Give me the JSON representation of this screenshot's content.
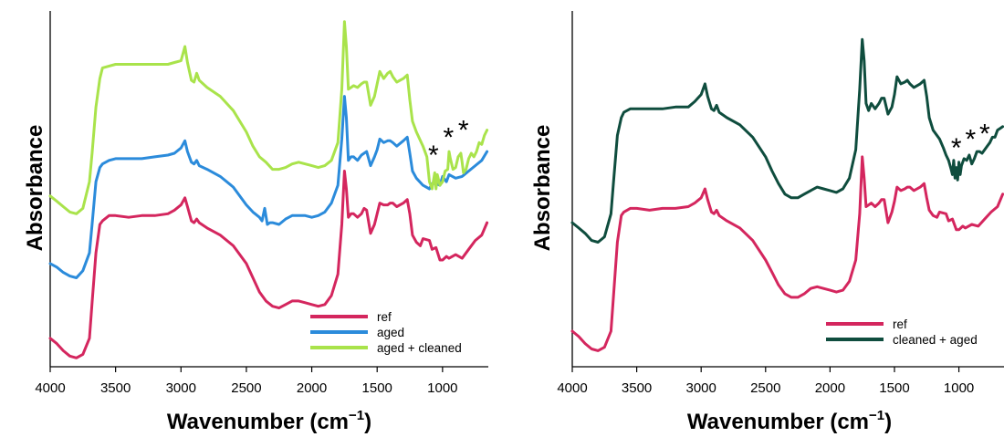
{
  "chart_data": [
    {
      "type": "line",
      "xlabel": "Wavenumber (cm",
      "xlabel_sup": "−1",
      "xlabel_close": ")",
      "ylabel": "Absorbance",
      "xlim": [
        4000,
        650
      ],
      "ylim": [
        0,
        10
      ],
      "xticks": [
        4000,
        3500,
        3000,
        2500,
        2000,
        1500,
        1000
      ],
      "annotations": [
        "*",
        "*",
        "*"
      ],
      "annotation_positions": [
        [
          1070,
          6.0
        ],
        [
          955,
          6.5
        ],
        [
          840,
          6.7
        ]
      ],
      "legend_position": "bottom-right",
      "series": [
        {
          "name": "ref",
          "color": "#d4265e",
          "x": [
            4000,
            3950,
            3900,
            3850,
            3800,
            3750,
            3700,
            3680,
            3650,
            3620,
            3600,
            3550,
            3500,
            3400,
            3300,
            3200,
            3100,
            3050,
            3000,
            2970,
            2950,
            2920,
            2900,
            2880,
            2860,
            2800,
            2700,
            2600,
            2500,
            2450,
            2400,
            2350,
            2300,
            2250,
            2200,
            2150,
            2100,
            2050,
            2000,
            1950,
            1900,
            1850,
            1800,
            1770,
            1750,
            1735,
            1720,
            1700,
            1680,
            1650,
            1620,
            1600,
            1580,
            1550,
            1520,
            1500,
            1480,
            1450,
            1420,
            1400,
            1380,
            1350,
            1300,
            1270,
            1250,
            1230,
            1200,
            1170,
            1150,
            1100,
            1080,
            1050,
            1020,
            1000,
            970,
            950,
            900,
            850,
            800,
            750,
            700,
            660
          ],
          "y": [
            0.8,
            0.65,
            0.45,
            0.3,
            0.25,
            0.35,
            0.8,
            1.8,
            3.2,
            4.0,
            4.1,
            4.25,
            4.25,
            4.2,
            4.25,
            4.25,
            4.3,
            4.4,
            4.55,
            4.75,
            4.5,
            4.1,
            4.05,
            4.15,
            4.05,
            3.9,
            3.7,
            3.4,
            2.9,
            2.5,
            2.1,
            1.85,
            1.7,
            1.65,
            1.75,
            1.85,
            1.85,
            1.8,
            1.75,
            1.7,
            1.75,
            2.0,
            2.6,
            4.0,
            5.5,
            5.0,
            4.2,
            4.3,
            4.3,
            4.2,
            4.3,
            4.45,
            4.4,
            3.75,
            4.0,
            4.3,
            4.6,
            4.55,
            4.55,
            4.6,
            4.6,
            4.5,
            4.6,
            4.7,
            4.3,
            3.7,
            3.5,
            3.4,
            3.6,
            3.55,
            3.3,
            3.35,
            3.0,
            3.0,
            3.1,
            3.05,
            3.15,
            3.05,
            3.3,
            3.55,
            3.7,
            4.05
          ]
        },
        {
          "name": "aged",
          "color": "#2b8bdb",
          "x": [
            4000,
            3950,
            3900,
            3850,
            3800,
            3750,
            3700,
            3680,
            3650,
            3620,
            3600,
            3550,
            3500,
            3400,
            3300,
            3200,
            3100,
            3050,
            3000,
            2970,
            2950,
            2920,
            2900,
            2880,
            2860,
            2800,
            2700,
            2600,
            2500,
            2450,
            2400,
            2380,
            2360,
            2340,
            2320,
            2300,
            2250,
            2200,
            2150,
            2100,
            2050,
            2000,
            1950,
            1900,
            1850,
            1800,
            1770,
            1750,
            1735,
            1720,
            1700,
            1680,
            1650,
            1620,
            1600,
            1580,
            1550,
            1520,
            1500,
            1480,
            1450,
            1420,
            1400,
            1380,
            1350,
            1300,
            1270,
            1250,
            1230,
            1200,
            1150,
            1100,
            1080,
            1050,
            1020,
            1000,
            970,
            950,
            900,
            850,
            800,
            750,
            700,
            660
          ],
          "y": [
            2.9,
            2.8,
            2.65,
            2.55,
            2.5,
            2.7,
            3.2,
            4.0,
            5.2,
            5.6,
            5.7,
            5.8,
            5.85,
            5.85,
            5.85,
            5.9,
            5.95,
            6.0,
            6.15,
            6.35,
            6.05,
            5.75,
            5.7,
            5.8,
            5.65,
            5.55,
            5.35,
            5.05,
            4.55,
            4.35,
            4.2,
            4.1,
            4.45,
            4.0,
            4.05,
            4.05,
            4.0,
            4.15,
            4.25,
            4.25,
            4.25,
            4.2,
            4.25,
            4.35,
            4.6,
            5.1,
            6.4,
            7.6,
            7.0,
            5.8,
            5.9,
            5.9,
            5.8,
            5.95,
            6.0,
            6.05,
            5.65,
            5.9,
            6.1,
            6.4,
            6.3,
            6.35,
            6.35,
            6.3,
            6.2,
            6.35,
            6.45,
            6.0,
            5.5,
            5.3,
            5.1,
            5.0,
            5.15,
            5.15,
            5.1,
            5.35,
            5.2,
            5.4,
            5.3,
            5.35,
            5.5,
            5.65,
            5.8,
            6.05
          ]
        },
        {
          "name": "aged + cleaned",
          "color": "#a9e34b",
          "x": [
            4000,
            3950,
            3900,
            3850,
            3800,
            3750,
            3700,
            3680,
            3650,
            3620,
            3600,
            3550,
            3500,
            3400,
            3300,
            3200,
            3100,
            3050,
            3000,
            2970,
            2950,
            2920,
            2900,
            2880,
            2860,
            2800,
            2700,
            2600,
            2500,
            2450,
            2400,
            2350,
            2300,
            2250,
            2200,
            2150,
            2100,
            2050,
            2000,
            1950,
            1900,
            1850,
            1800,
            1770,
            1750,
            1735,
            1720,
            1700,
            1680,
            1650,
            1620,
            1600,
            1580,
            1550,
            1520,
            1500,
            1480,
            1450,
            1420,
            1400,
            1380,
            1350,
            1300,
            1270,
            1250,
            1230,
            1200,
            1150,
            1120,
            1100,
            1080,
            1060,
            1050,
            1040,
            1020,
            1000,
            980,
            960,
            950,
            940,
            920,
            900,
            880,
            860,
            850,
            840,
            820,
            800,
            780,
            760,
            740,
            720,
            700,
            680,
            660
          ],
          "y": [
            4.8,
            4.65,
            4.5,
            4.35,
            4.3,
            4.45,
            5.2,
            6.0,
            7.3,
            8.1,
            8.4,
            8.45,
            8.5,
            8.5,
            8.5,
            8.5,
            8.5,
            8.55,
            8.6,
            9.0,
            8.55,
            8.05,
            8.0,
            8.25,
            8.05,
            7.85,
            7.6,
            7.2,
            6.6,
            6.2,
            5.9,
            5.75,
            5.55,
            5.55,
            5.6,
            5.7,
            5.75,
            5.7,
            5.65,
            5.6,
            5.65,
            5.8,
            6.3,
            7.8,
            9.7,
            9.0,
            7.8,
            7.85,
            7.9,
            7.85,
            7.95,
            8.0,
            8.0,
            7.35,
            7.6,
            7.95,
            8.3,
            8.1,
            8.25,
            8.3,
            8.15,
            8.0,
            8.1,
            8.2,
            7.5,
            6.9,
            6.6,
            6.2,
            5.9,
            5.2,
            5.0,
            5.45,
            5.0,
            5.4,
            5.1,
            5.2,
            5.5,
            5.55,
            6.05,
            5.85,
            5.55,
            5.6,
            5.9,
            6.0,
            5.75,
            5.45,
            5.55,
            5.85,
            6.0,
            5.9,
            6.05,
            6.3,
            6.25,
            6.5,
            6.65
          ]
        }
      ]
    },
    {
      "type": "line",
      "xlabel": "Wavenumber (cm",
      "xlabel_sup": "−1",
      "xlabel_close": ")",
      "ylabel": "Absorbance",
      "xlim": [
        4000,
        650
      ],
      "ylim": [
        0,
        10
      ],
      "xticks": [
        4000,
        3500,
        3000,
        2500,
        2000,
        1500,
        1000
      ],
      "annotations": [
        "*",
        "*",
        "*"
      ],
      "annotation_positions": [
        [
          1020,
          6.2
        ],
        [
          910,
          6.45
        ],
        [
          800,
          6.6
        ]
      ],
      "legend_position": "bottom-right",
      "series": [
        {
          "name": "ref",
          "color": "#d4265e",
          "x": [
            4000,
            3950,
            3900,
            3850,
            3800,
            3750,
            3700,
            3680,
            3650,
            3620,
            3600,
            3550,
            3500,
            3400,
            3300,
            3200,
            3100,
            3050,
            3000,
            2970,
            2950,
            2920,
            2900,
            2880,
            2860,
            2800,
            2700,
            2600,
            2500,
            2450,
            2400,
            2350,
            2300,
            2250,
            2200,
            2150,
            2100,
            2050,
            2000,
            1950,
            1900,
            1850,
            1800,
            1770,
            1750,
            1735,
            1720,
            1700,
            1680,
            1650,
            1620,
            1600,
            1580,
            1550,
            1520,
            1500,
            1480,
            1450,
            1420,
            1400,
            1380,
            1350,
            1300,
            1270,
            1250,
            1230,
            1200,
            1170,
            1150,
            1100,
            1080,
            1050,
            1020,
            1000,
            970,
            950,
            900,
            850,
            800,
            750,
            700,
            660
          ],
          "y": [
            1.0,
            0.85,
            0.65,
            0.5,
            0.45,
            0.55,
            1.0,
            2.0,
            3.5,
            4.25,
            4.35,
            4.45,
            4.45,
            4.4,
            4.45,
            4.45,
            4.5,
            4.6,
            4.75,
            5.0,
            4.7,
            4.35,
            4.3,
            4.4,
            4.25,
            4.1,
            3.9,
            3.55,
            3.0,
            2.65,
            2.3,
            2.05,
            1.95,
            1.95,
            2.05,
            2.2,
            2.25,
            2.2,
            2.15,
            2.1,
            2.15,
            2.4,
            3.0,
            4.3,
            5.9,
            5.3,
            4.5,
            4.55,
            4.6,
            4.5,
            4.6,
            4.7,
            4.7,
            4.05,
            4.35,
            4.65,
            5.05,
            4.95,
            5.0,
            5.05,
            5.05,
            4.95,
            5.05,
            5.15,
            4.75,
            4.4,
            4.25,
            4.2,
            4.35,
            4.3,
            4.1,
            4.15,
            3.85,
            3.85,
            3.95,
            3.9,
            4.0,
            3.95,
            4.15,
            4.35,
            4.5,
            4.85
          ]
        },
        {
          "name": "cleaned + aged",
          "color": "#0f4d3e",
          "x": [
            4000,
            3950,
            3900,
            3850,
            3800,
            3750,
            3700,
            3680,
            3650,
            3620,
            3600,
            3550,
            3500,
            3400,
            3300,
            3200,
            3100,
            3050,
            3000,
            2970,
            2950,
            2920,
            2900,
            2880,
            2860,
            2800,
            2700,
            2600,
            2500,
            2450,
            2400,
            2350,
            2300,
            2250,
            2200,
            2150,
            2100,
            2050,
            2000,
            1950,
            1900,
            1850,
            1800,
            1770,
            1750,
            1735,
            1720,
            1700,
            1680,
            1650,
            1620,
            1600,
            1580,
            1550,
            1520,
            1500,
            1480,
            1450,
            1420,
            1400,
            1380,
            1350,
            1300,
            1270,
            1250,
            1230,
            1200,
            1150,
            1120,
            1100,
            1080,
            1060,
            1050,
            1040,
            1030,
            1020,
            1010,
            1000,
            990,
            980,
            960,
            940,
            920,
            900,
            880,
            860,
            840,
            820,
            800,
            780,
            760,
            740,
            720,
            700,
            680,
            660
          ],
          "y": [
            4.05,
            3.9,
            3.75,
            3.55,
            3.5,
            3.65,
            4.3,
            5.2,
            6.5,
            7.0,
            7.15,
            7.25,
            7.25,
            7.25,
            7.25,
            7.3,
            7.3,
            7.45,
            7.65,
            7.95,
            7.6,
            7.25,
            7.2,
            7.35,
            7.15,
            7.0,
            6.8,
            6.45,
            5.9,
            5.5,
            5.15,
            4.85,
            4.75,
            4.75,
            4.85,
            4.95,
            5.05,
            5.0,
            4.95,
            4.9,
            5.0,
            5.3,
            6.1,
            7.8,
            9.2,
            8.6,
            7.4,
            7.2,
            7.4,
            7.25,
            7.4,
            7.55,
            7.55,
            7.1,
            7.3,
            7.65,
            8.15,
            7.95,
            8.0,
            8.05,
            7.95,
            7.85,
            7.95,
            8.05,
            7.6,
            7.0,
            6.65,
            6.4,
            6.15,
            5.95,
            5.8,
            5.55,
            5.4,
            5.8,
            5.3,
            5.6,
            5.25,
            5.75,
            5.4,
            5.65,
            5.85,
            5.8,
            5.95,
            5.7,
            5.85,
            6.05,
            6.05,
            6.0,
            6.1,
            6.2,
            6.3,
            6.45,
            6.45,
            6.65,
            6.7,
            6.75
          ]
        }
      ]
    }
  ]
}
